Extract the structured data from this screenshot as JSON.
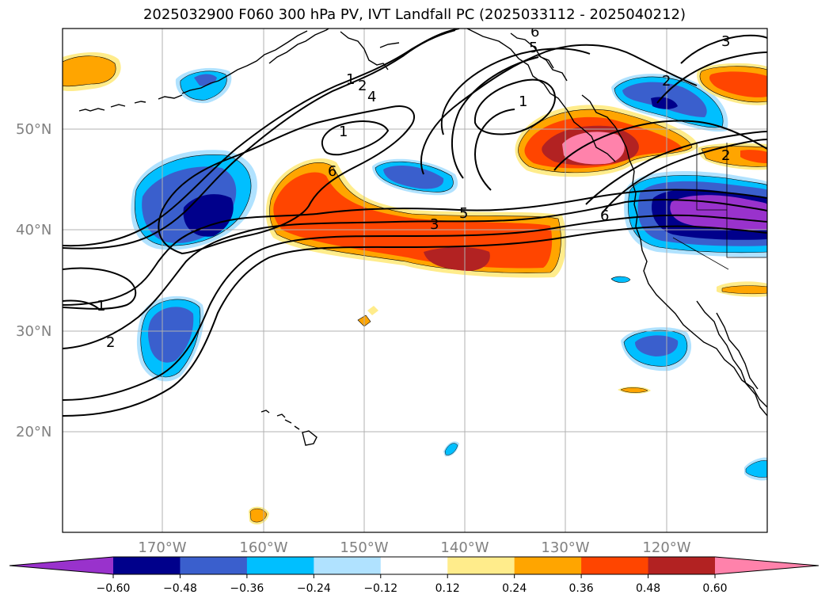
{
  "title": "2025032900 F060 300 hPa PV, IVT Landfall PC (2025033112 - 2025040212)",
  "latitude_labels": [
    "50°N",
    "40°N",
    "30°N",
    "20°N"
  ],
  "longitude_labels": [
    "170°W",
    "160°W",
    "150°W",
    "140°W",
    "130°W",
    "120°W"
  ],
  "colorbar": {
    "ticks": [
      "−0.60",
      "−0.48",
      "−0.36",
      "−0.24",
      "−0.12",
      "0.12",
      "0.24",
      "0.36",
      "0.48",
      "0.60"
    ],
    "colors": [
      "#9932cc",
      "#00008b",
      "#3a5fcd",
      "#00bfff",
      "#b0e2ff",
      "#ffffff",
      "#ffec8b",
      "#ffa500",
      "#ff4500",
      "#b22222",
      "#ff82ab"
    ]
  },
  "contour_labels": [
    "1",
    "2",
    "4",
    "1",
    "6",
    "5",
    "3",
    "6",
    "1",
    "2",
    "1",
    "2",
    "3",
    "6",
    "5",
    "2"
  ],
  "colors": {
    "grid": "#b0b0b0",
    "neg_strong": "#00008b",
    "neg_mid": "#3a5fcd",
    "neg_weak": "#00bfff",
    "neg_faint": "#b0e2ff",
    "pos_faint": "#ffec8b",
    "pos_weak": "#ffa500",
    "pos_mid": "#ff4500",
    "pos_strong": "#b22222",
    "pos_max": "#ff82ab",
    "purple": "#9932cc"
  }
}
